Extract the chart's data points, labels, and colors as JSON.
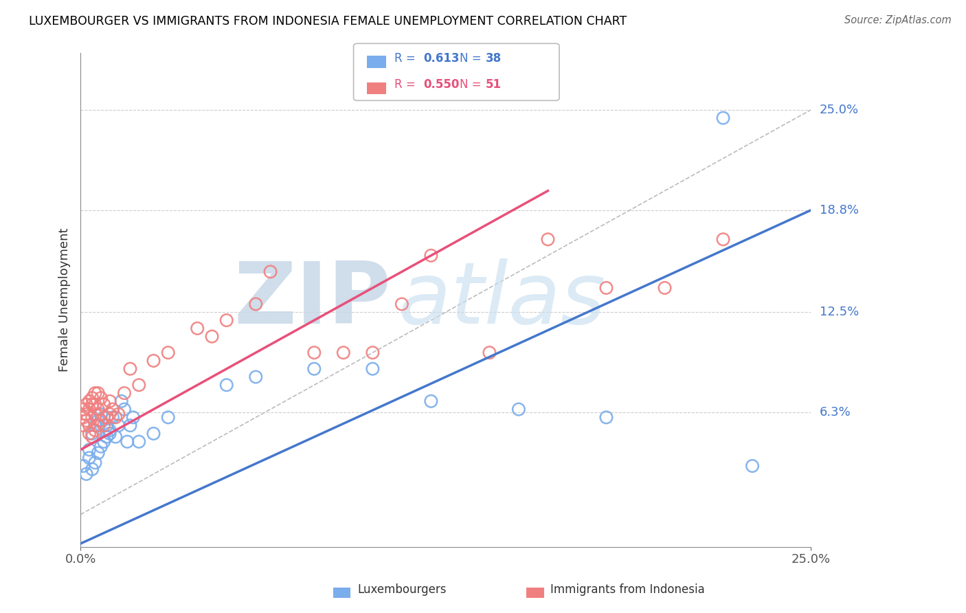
{
  "title": "LUXEMBOURGER VS IMMIGRANTS FROM INDONESIA FEMALE UNEMPLOYMENT CORRELATION CHART",
  "source": "Source: ZipAtlas.com",
  "ylabel": "Female Unemployment",
  "xlim": [
    0.0,
    0.25
  ],
  "ylim": [
    -0.02,
    0.285
  ],
  "ytick_labels_right": [
    {
      "val": 0.25,
      "label": "25.0%"
    },
    {
      "val": 0.188,
      "label": "18.8%"
    },
    {
      "val": 0.125,
      "label": "12.5%"
    },
    {
      "val": 0.063,
      "label": "6.3%"
    }
  ],
  "legend_r1": "R = ",
  "legend_r1_val": "0.613",
  "legend_n1_pre": "N = ",
  "legend_n1_val": "38",
  "legend_r2": "R = ",
  "legend_r2_val": "0.550",
  "legend_n2_pre": "N = ",
  "legend_n2_val": "51",
  "color_blue": "#7aadeb",
  "color_pink": "#f08080",
  "color_blue_line": "#4477cc",
  "color_pink_line": "#e8507a",
  "color_diag": "#BBBBBB",
  "watermark_zip": "ZIP",
  "watermark_atlas": "atlas",
  "grid_color": "#CCCCCC",
  "blue_line_x0": 0.0,
  "blue_line_y0": -0.018,
  "blue_line_x1": 0.25,
  "blue_line_y1": 0.188,
  "pink_line_x0": 0.0,
  "pink_line_y0": 0.04,
  "pink_line_x1": 0.16,
  "pink_line_y1": 0.2,
  "lux_x": [
    0.001,
    0.002,
    0.003,
    0.003,
    0.004,
    0.004,
    0.005,
    0.005,
    0.006,
    0.006,
    0.007,
    0.007,
    0.008,
    0.008,
    0.009,
    0.009,
    0.01,
    0.01,
    0.011,
    0.012,
    0.013,
    0.014,
    0.015,
    0.016,
    0.017,
    0.018,
    0.02,
    0.025,
    0.03,
    0.05,
    0.06,
    0.08,
    0.1,
    0.12,
    0.15,
    0.18,
    0.22,
    0.23
  ],
  "lux_y": [
    0.03,
    0.025,
    0.035,
    0.04,
    0.028,
    0.05,
    0.032,
    0.055,
    0.038,
    0.058,
    0.042,
    0.062,
    0.045,
    0.06,
    0.048,
    0.055,
    0.05,
    0.052,
    0.06,
    0.048,
    0.055,
    0.07,
    0.065,
    0.045,
    0.055,
    0.06,
    0.045,
    0.05,
    0.06,
    0.08,
    0.085,
    0.09,
    0.09,
    0.07,
    0.065,
    0.06,
    0.245,
    0.03
  ],
  "indo_x": [
    0.001,
    0.001,
    0.001,
    0.002,
    0.002,
    0.002,
    0.003,
    0.003,
    0.003,
    0.003,
    0.004,
    0.004,
    0.004,
    0.004,
    0.005,
    0.005,
    0.005,
    0.005,
    0.006,
    0.006,
    0.006,
    0.007,
    0.007,
    0.008,
    0.008,
    0.009,
    0.01,
    0.01,
    0.011,
    0.012,
    0.013,
    0.015,
    0.017,
    0.02,
    0.025,
    0.03,
    0.04,
    0.045,
    0.05,
    0.06,
    0.065,
    0.08,
    0.09,
    0.1,
    0.11,
    0.12,
    0.14,
    0.16,
    0.18,
    0.2,
    0.22
  ],
  "indo_y": [
    0.055,
    0.06,
    0.065,
    0.058,
    0.062,
    0.068,
    0.05,
    0.055,
    0.065,
    0.07,
    0.048,
    0.06,
    0.068,
    0.072,
    0.052,
    0.062,
    0.068,
    0.075,
    0.055,
    0.065,
    0.075,
    0.058,
    0.072,
    0.055,
    0.068,
    0.06,
    0.062,
    0.07,
    0.065,
    0.06,
    0.062,
    0.075,
    0.09,
    0.08,
    0.095,
    0.1,
    0.115,
    0.11,
    0.12,
    0.13,
    0.15,
    0.1,
    0.1,
    0.1,
    0.13,
    0.16,
    0.1,
    0.17,
    0.14,
    0.14,
    0.17
  ]
}
